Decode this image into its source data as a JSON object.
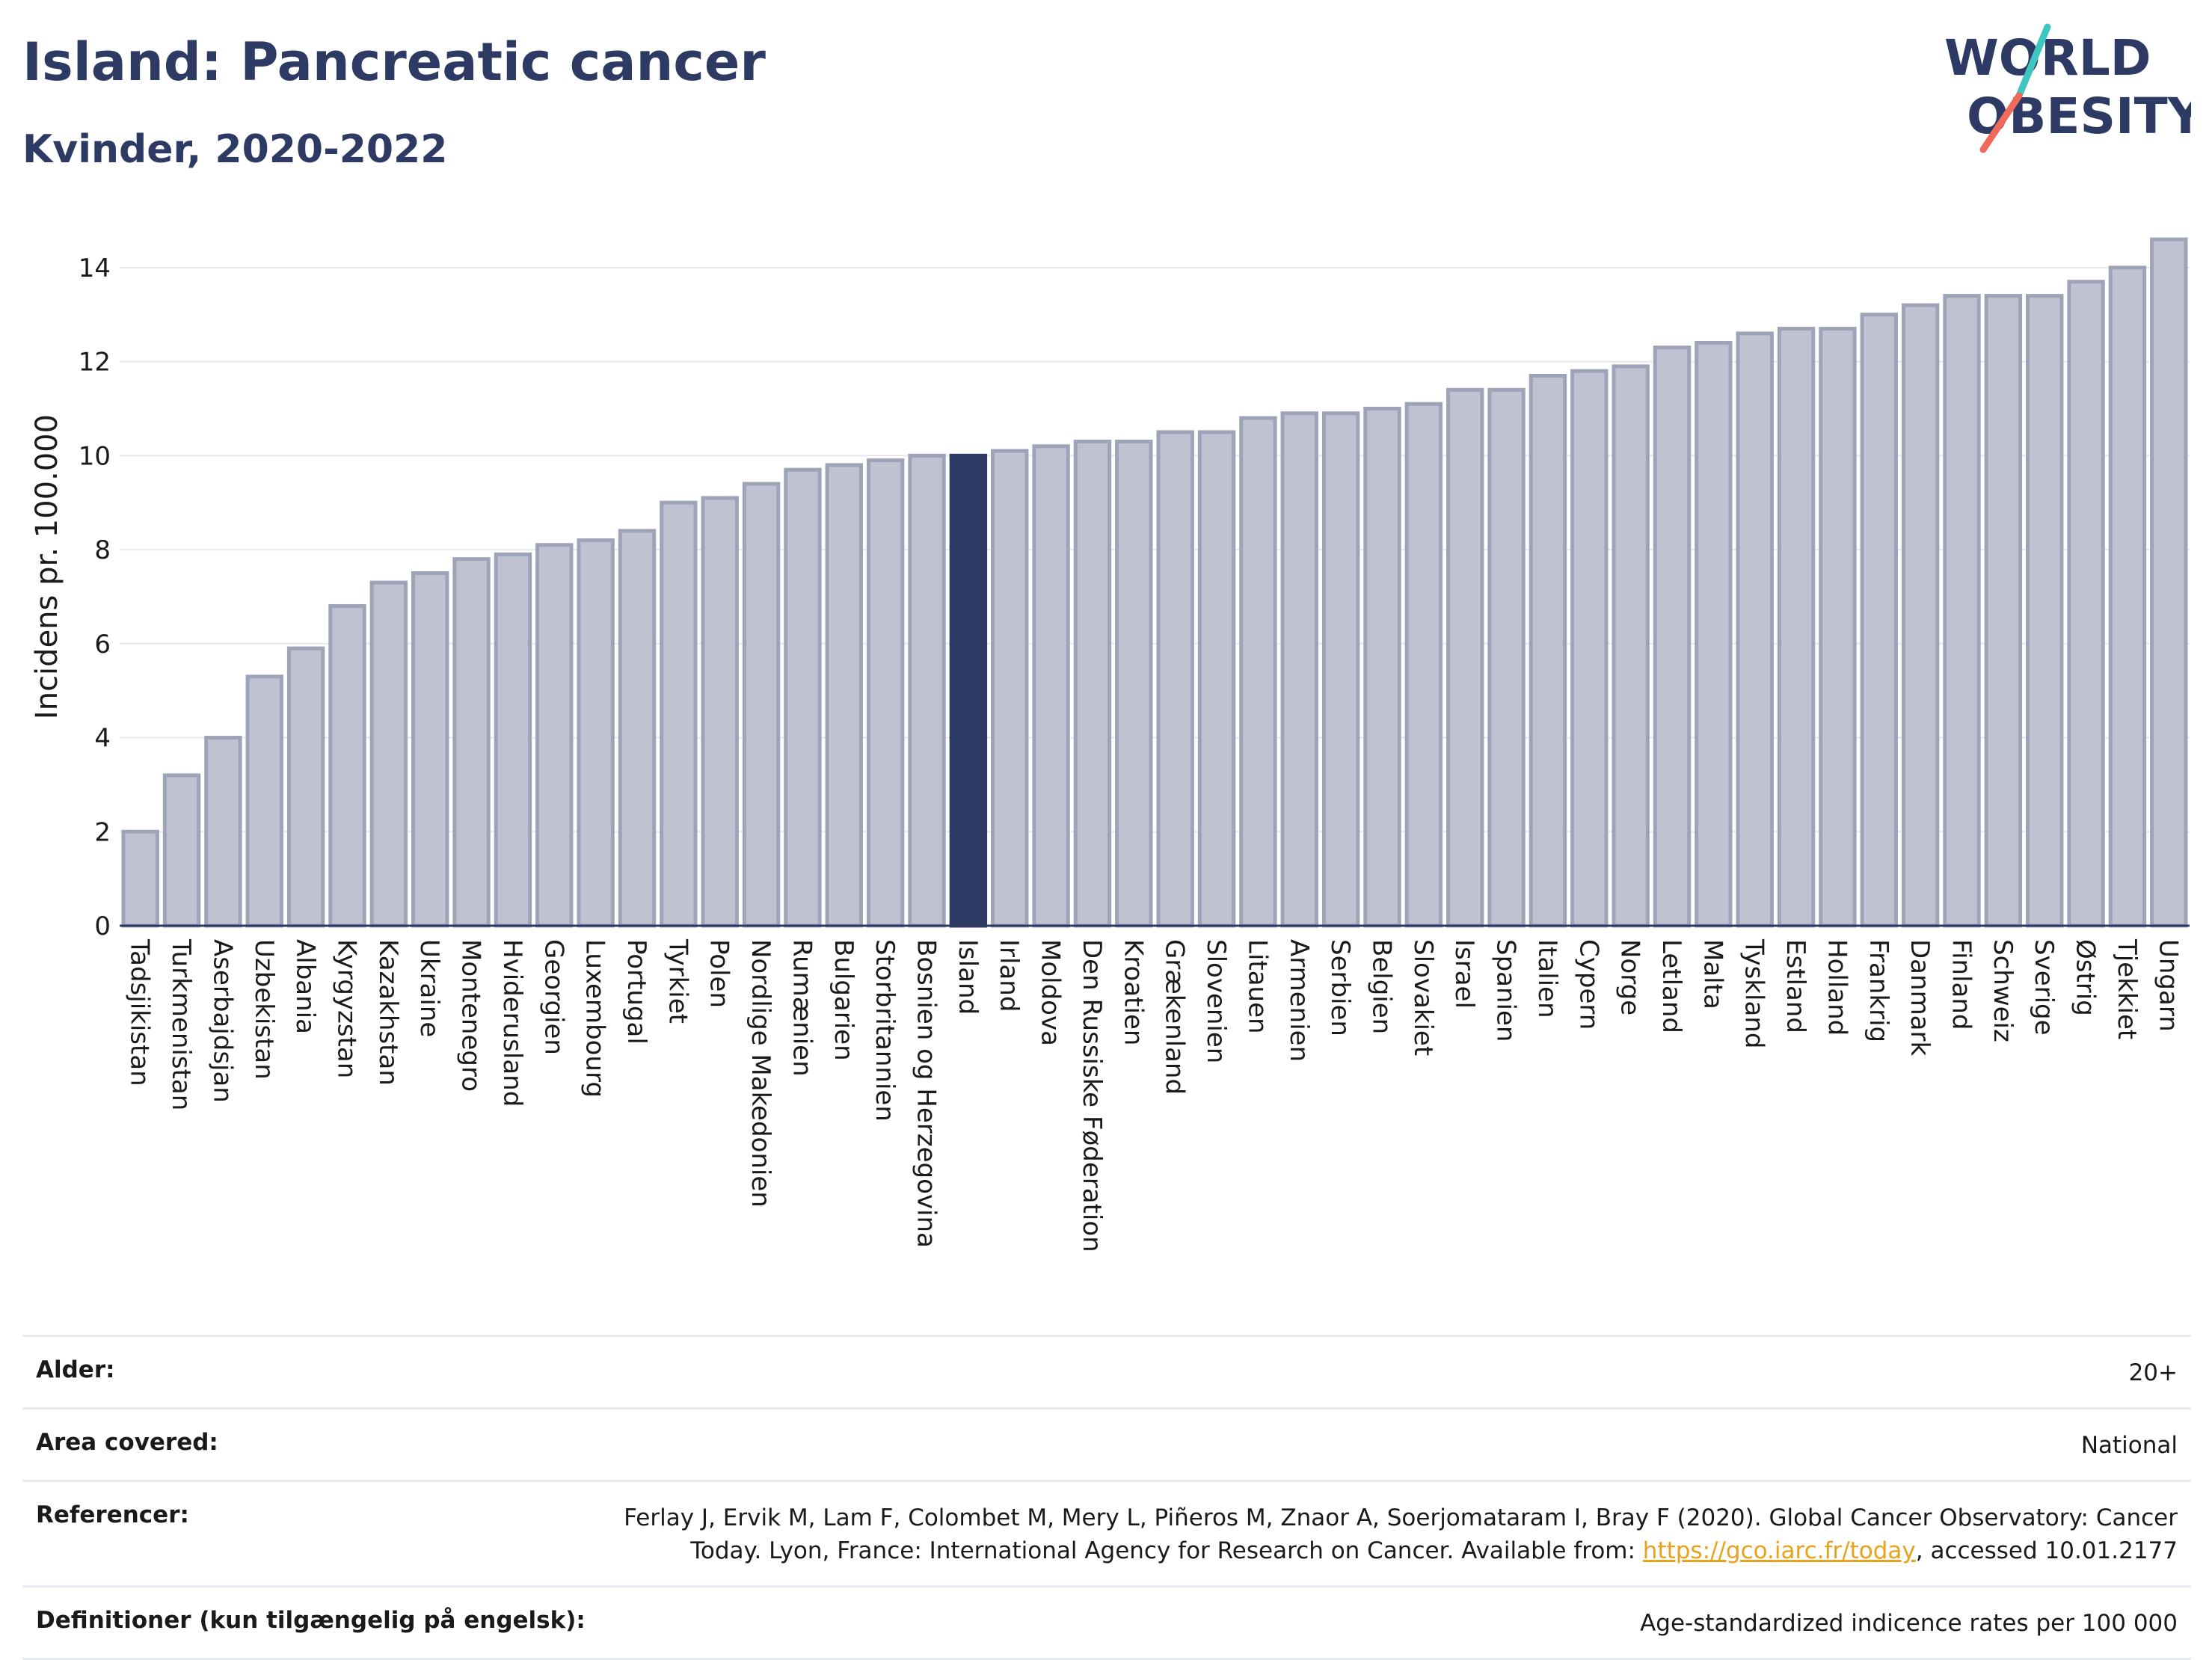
{
  "title": "Island: Pancreatic cancer",
  "subtitle": "Kvinder, 2020-2022",
  "logo": {
    "line1": "WORLD",
    "line2": "OBESITY",
    "accent_colors": [
      "#3ec6c0",
      "#ef6a5a"
    ]
  },
  "colors": {
    "bar": "#bfc3d1",
    "bar_stroke": "#9ea3b8",
    "highlight": "#2d3a63",
    "text_dark": "#2d3a63",
    "link": "#e8a21c"
  },
  "chart_data": {
    "type": "bar",
    "ylabel": "Incidens pr. 100.000",
    "ylim": [
      0,
      15
    ],
    "yticks": [
      0,
      2,
      4,
      6,
      8,
      10,
      12,
      14
    ],
    "grid": true,
    "highlight": "Island",
    "categories": [
      "Tadsjikistan",
      "Turkmenistan",
      "Aserbajdsjan",
      "Uzbekistan",
      "Albania",
      "Kyrgyzstan",
      "Kazakhstan",
      "Ukraine",
      "Montenegro",
      "Hviderusland",
      "Georgien",
      "Luxembourg",
      "Portugal",
      "Tyrkiet",
      "Polen",
      "Nordlige Makedonien",
      "Rumænien",
      "Bulgarien",
      "Storbritannien",
      "Bosnien og Herzegovina",
      "Island",
      "Irland",
      "Moldova",
      "Den Russiske Føderation",
      "Kroatien",
      "Grækenland",
      "Slovenien",
      "Litauen",
      "Armenien",
      "Serbien",
      "Belgien",
      "Slovakiet",
      "Israel",
      "Spanien",
      "Italien",
      "Cypern",
      "Norge",
      "Letland",
      "Malta",
      "Tyskland",
      "Estland",
      "Holland",
      "Frankrig",
      "Danmark",
      "Finland",
      "Schweiz",
      "Sverige",
      "Østrig",
      "Tjekkiet",
      "Ungarn"
    ],
    "values": [
      2.0,
      3.2,
      4.0,
      5.3,
      5.9,
      6.8,
      7.3,
      7.5,
      7.8,
      7.9,
      8.1,
      8.2,
      8.4,
      9.0,
      9.1,
      9.4,
      9.7,
      9.8,
      9.9,
      10.0,
      10.0,
      10.1,
      10.2,
      10.3,
      10.3,
      10.5,
      10.5,
      10.8,
      10.9,
      10.9,
      11.0,
      11.1,
      11.4,
      11.4,
      11.7,
      11.8,
      11.9,
      12.3,
      12.4,
      12.6,
      12.7,
      12.7,
      13.0,
      13.2,
      13.4,
      13.4,
      13.4,
      13.7,
      14.0,
      14.6
    ]
  },
  "info": {
    "age_label": "Alder:",
    "age_value": "20+",
    "area_label": "Area covered:",
    "area_value": "National",
    "ref_label": "Referencer:",
    "ref_text_1": "Ferlay J, Ervik M, Lam F, Colombet M, Mery L, Piñeros M, Znaor A, Soerjomataram I, Bray F (2020). Global Cancer Observatory: Cancer Today. Lyon, France: International Agency for Research on Cancer. Available from: ",
    "ref_link": "https://gco.iarc.fr/today",
    "ref_text_2": ", accessed 10.01.2177",
    "def_label": "Definitioner (kun tilgængelig på engelsk):",
    "def_value": "Age-standardized indicence rates per 100 000"
  }
}
